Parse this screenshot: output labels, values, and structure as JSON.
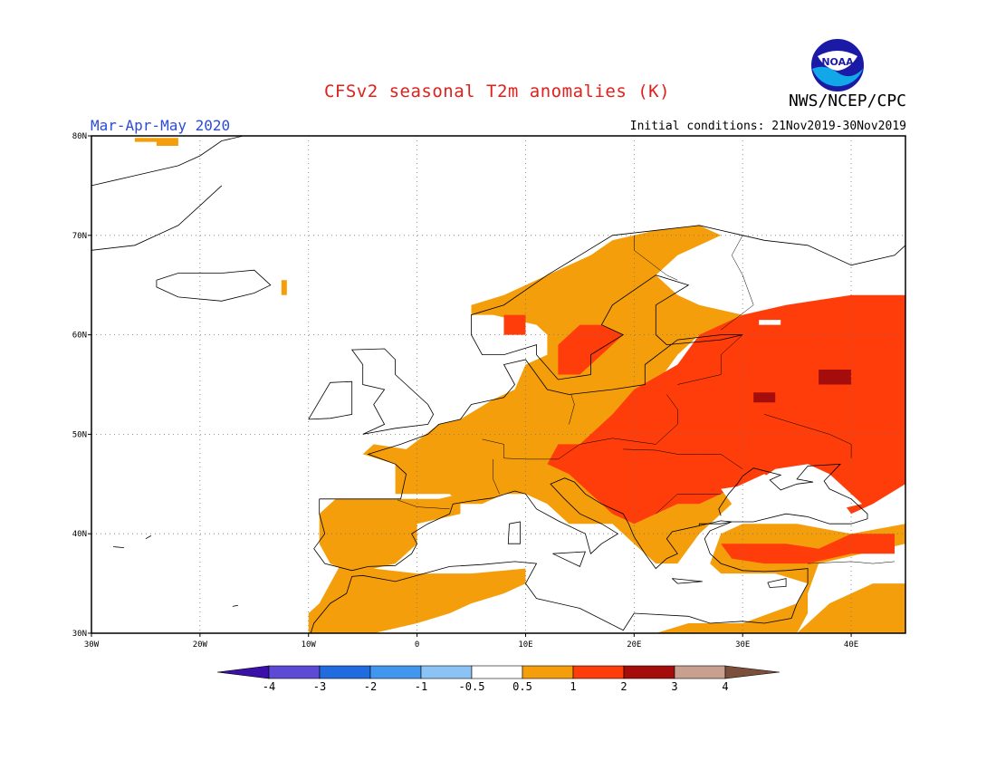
{
  "header": {
    "title": "CFSv2 seasonal T2m anomalies (K)",
    "agency": "NWS/NCEP/CPC",
    "period": "Mar-Apr-May 2020",
    "initial_conditions": "Initial conditions: 21Nov2019-30Nov2019",
    "logo_text": "NOAA"
  },
  "map": {
    "lon_range": [
      -30,
      45
    ],
    "lat_range": [
      30,
      80
    ],
    "lon_ticks": [
      "30W",
      "20W",
      "10W",
      "0",
      "10E",
      "20E",
      "30E",
      "40E"
    ],
    "lat_ticks": [
      "30N",
      "40N",
      "50N",
      "60N",
      "70N",
      "80N"
    ],
    "grid": "dotted",
    "anomaly_fields": [
      {
        "category": "0.5 to 1",
        "color": "#f59e0b"
      },
      {
        "category": "1 to 2",
        "color": "#ff3d0a"
      },
      {
        "category": "2 to 3",
        "color": "#a50d0d"
      }
    ]
  },
  "colorbar": {
    "boundaries": [
      "-4",
      "-3",
      "-2",
      "-1",
      "-0.5",
      "0.5",
      "1",
      "2",
      "3",
      "4"
    ],
    "colors": [
      "#3b10a8",
      "#5c4ad4",
      "#1f6bdf",
      "#4196f0",
      "#8cc3f7",
      "#ffffff",
      "#f59e0b",
      "#ff3d0a",
      "#a50d0d",
      "#c9a090",
      "#7c4e3c"
    ]
  }
}
